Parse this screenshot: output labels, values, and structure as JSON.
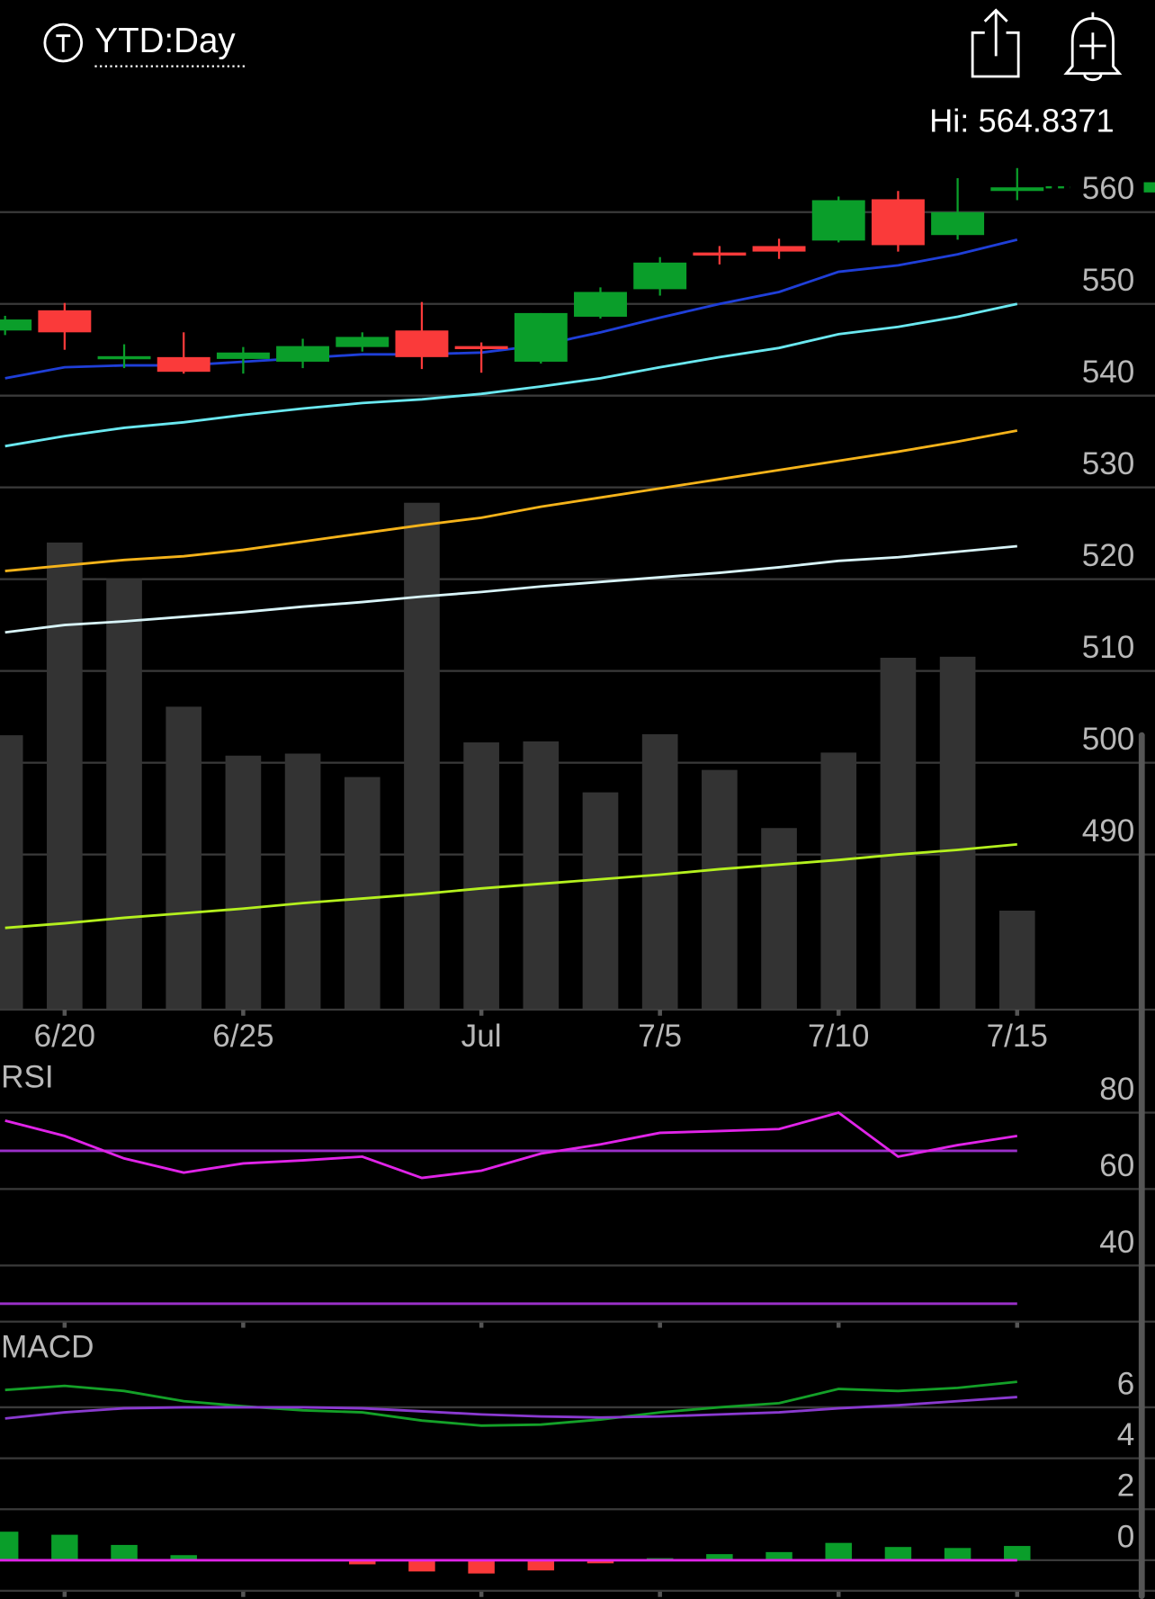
{
  "header": {
    "range": "YTD:Day",
    "high": "Hi: 564.8371"
  },
  "chart_data": [
    {
      "type": "candlestick",
      "categories": [
        null,
        "6/20",
        null,
        null,
        "6/25",
        null,
        null,
        null,
        "Jul",
        null,
        null,
        "7/5",
        null,
        null,
        "7/10",
        null,
        null,
        "7/15"
      ],
      "open": [
        547.1,
        549.3,
        544.2,
        544.2,
        544.0,
        543.7,
        545.3,
        547.1,
        545.4,
        543.7,
        548.6,
        551.6,
        555.6,
        556.3,
        556.9,
        561.4,
        557.5,
        562.3
      ],
      "high": [
        548.7,
        550.1,
        545.6,
        546.9,
        545.3,
        546.2,
        546.9,
        550.2,
        545.8,
        549.0,
        551.8,
        555.1,
        556.3,
        557.1,
        561.7,
        562.3,
        563.7,
        564.8
      ],
      "low": [
        546.6,
        545.0,
        543.0,
        542.4,
        542.4,
        543.0,
        544.8,
        542.9,
        542.5,
        543.5,
        548.4,
        550.9,
        554.3,
        554.9,
        556.7,
        555.7,
        557.0,
        561.3
      ],
      "close": [
        548.3,
        546.9,
        544.3,
        542.6,
        544.7,
        545.4,
        546.4,
        544.2,
        545.3,
        549.0,
        551.3,
        554.5,
        555.5,
        555.7,
        561.3,
        556.4,
        560.0,
        562.7
      ],
      "up_color": "#0a9e2a",
      "down_color": "#fa3a3a",
      "series": [
        {
          "color": "#1f3fd8",
          "values": [
            541.9,
            543.1,
            543.3,
            543.3,
            543.7,
            544.1,
            544.5,
            544.5,
            544.7,
            545.5,
            546.9,
            548.5,
            550.0,
            551.3,
            553.5,
            554.2,
            555.4,
            557.0
          ]
        },
        {
          "color": "#6ae8f0",
          "values": [
            534.5,
            535.6,
            536.5,
            537.1,
            537.9,
            538.6,
            539.2,
            539.6,
            540.2,
            541.0,
            541.9,
            543.1,
            544.2,
            545.2,
            546.7,
            547.5,
            548.6,
            550.0
          ]
        },
        {
          "color": "#f5b31a",
          "values": [
            520.9,
            521.5,
            522.1,
            522.5,
            523.2,
            524.1,
            525.0,
            525.9,
            526.7,
            527.9,
            528.9,
            529.9,
            530.9,
            531.9,
            532.9,
            533.9,
            535.0,
            536.2
          ]
        },
        {
          "color": "#d8f4f8",
          "values": [
            514.2,
            515.0,
            515.4,
            515.9,
            516.4,
            517.0,
            517.5,
            518.1,
            518.6,
            519.2,
            519.7,
            520.2,
            520.7,
            521.3,
            522.0,
            522.4,
            523.0,
            523.6
          ]
        },
        {
          "color": "#b4f01e",
          "values": [
            482.0,
            482.5,
            483.1,
            483.6,
            484.1,
            484.7,
            485.2,
            485.7,
            486.3,
            486.8,
            487.3,
            487.8,
            488.4,
            488.9,
            489.4,
            490.0,
            490.5,
            491.1
          ]
        }
      ],
      "volume": {
        "color": "#333333",
        "values": [
          269,
          458,
          423,
          297,
          249,
          251,
          228,
          497,
          262,
          263,
          213,
          270,
          235,
          178,
          252,
          345,
          346,
          97
        ]
      },
      "ylim": [
        473.1,
        567.3
      ],
      "yticks": [
        560,
        550,
        540,
        530,
        520,
        510,
        500,
        490
      ],
      "grid": true
    },
    {
      "type": "line",
      "title": "RSI",
      "series": [
        {
          "color": "#e024e8",
          "values": [
            77.9,
            73.9,
            68.0,
            64.3,
            66.7,
            67.5,
            68.5,
            62.9,
            64.8,
            69.3,
            71.7,
            74.7,
            75.2,
            75.7,
            80.0,
            68.5,
            71.5,
            73.9
          ]
        }
      ],
      "levels": [
        70,
        30
      ],
      "level_color": "#9a30c8",
      "ylim": [
        25.3,
        92.3
      ],
      "yticks": [
        80,
        60,
        40
      ],
      "grid": true
    },
    {
      "type": "macd",
      "title": "MACD",
      "series": [
        {
          "color": "#14a028",
          "values": [
            6.68,
            6.84,
            6.64,
            6.24,
            6.04,
            5.88,
            5.8,
            5.48,
            5.28,
            5.32,
            5.52,
            5.8,
            6.0,
            6.16,
            6.72,
            6.64,
            6.76,
            7.0
          ]
        },
        {
          "color": "#8a3ad0",
          "values": [
            5.56,
            5.8,
            5.96,
            6.0,
            6.0,
            6.0,
            5.96,
            5.84,
            5.72,
            5.64,
            5.6,
            5.64,
            5.72,
            5.8,
            5.96,
            6.08,
            6.24,
            6.4
          ]
        }
      ],
      "histogram": {
        "values": [
          1.12,
          1.0,
          0.6,
          0.2,
          0.04,
          -0.04,
          -0.16,
          -0.44,
          -0.52,
          -0.4,
          -0.12,
          0.08,
          0.24,
          0.32,
          0.68,
          0.52,
          0.48,
          0.56
        ],
        "up_color": "#0a9e2a",
        "down_color": "#fa3a3a"
      },
      "zero_color": "#e024e8",
      "ylim": [
        -1.2,
        8.8
      ],
      "yticks": [
        6,
        4,
        2,
        0
      ],
      "grid": true
    }
  ]
}
